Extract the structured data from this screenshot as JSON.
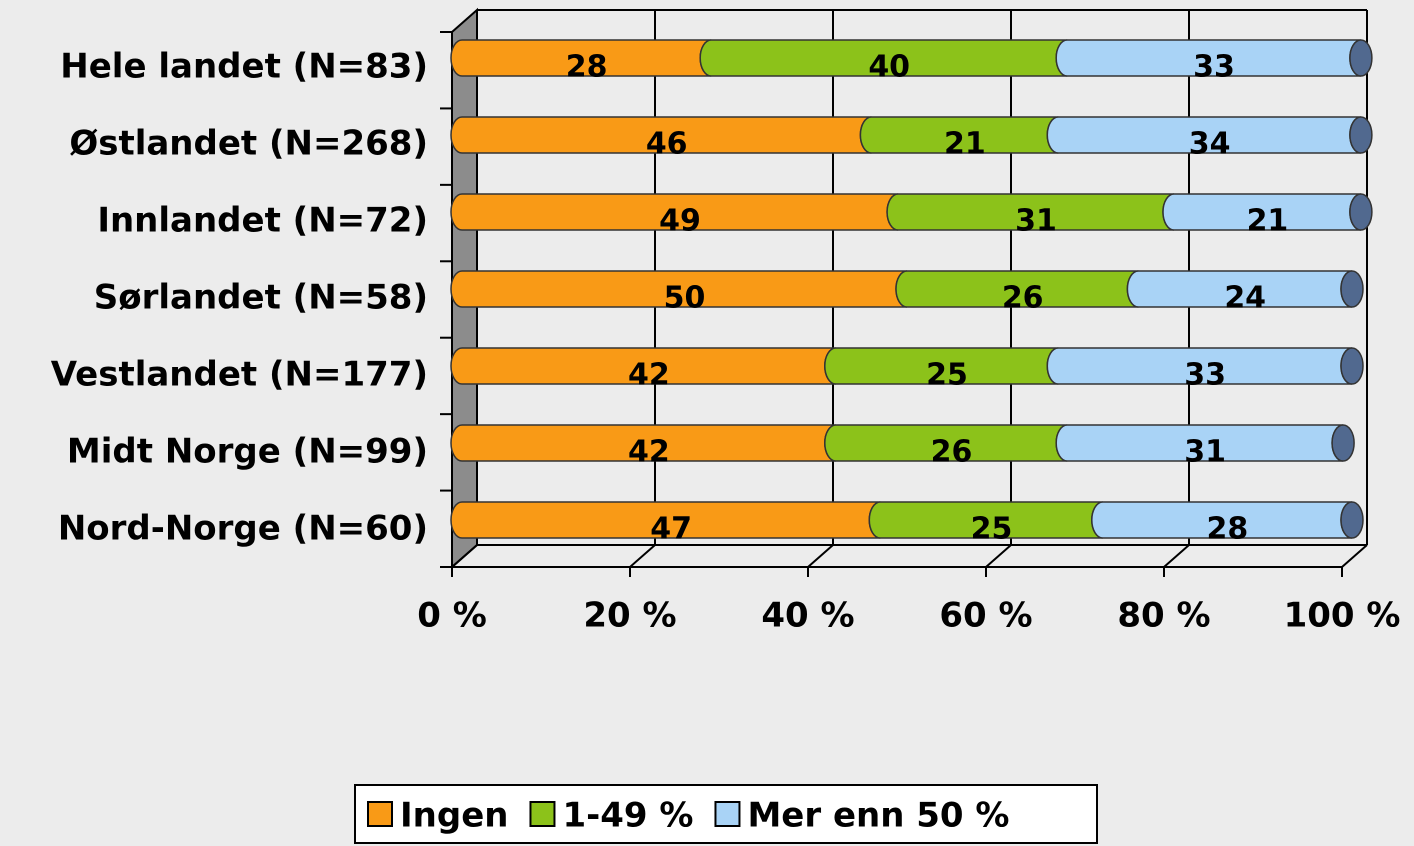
{
  "chart_data": {
    "type": "stacked_bar_horizontal",
    "categories": [
      "Hele landet (N=83)",
      "Østlandet (N=268)",
      "Innlandet (N=72)",
      "Sørlandet (N=58)",
      "Vestlandet (N=177)",
      "Midt Norge (N=99)",
      "Nord-Norge (N=60)"
    ],
    "series": [
      {
        "name": "Ingen",
        "color": "#f99a16",
        "values": [
          28,
          46,
          49,
          50,
          42,
          42,
          47
        ]
      },
      {
        "name": "1-49 %",
        "color": "#8cc21a",
        "values": [
          40,
          21,
          31,
          26,
          25,
          26,
          25
        ]
      },
      {
        "name": "Mer enn 50 %",
        "color": "#a9d3f6",
        "values": [
          33,
          34,
          21,
          24,
          33,
          31,
          28
        ]
      }
    ],
    "xlim": [
      0,
      100
    ],
    "xticks": [
      {
        "value": 0,
        "label": "0 %"
      },
      {
        "value": 20,
        "label": "20 %"
      },
      {
        "value": 40,
        "label": "40 %"
      },
      {
        "value": 60,
        "label": "60 %"
      },
      {
        "value": 80,
        "label": "80 %"
      },
      {
        "value": 100,
        "label": "100 %"
      }
    ],
    "grid": true,
    "legend": "bottom"
  }
}
